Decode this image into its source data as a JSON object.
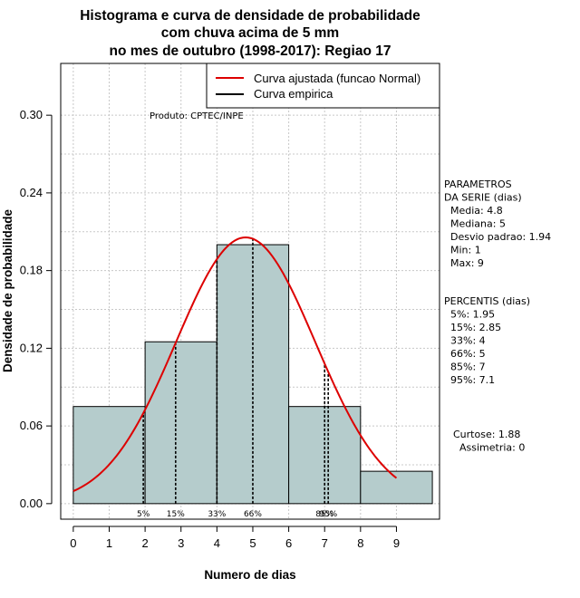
{
  "chart_data": {
    "type": "bar",
    "title_lines": [
      "Histograma e curva de densidade de probabilidade",
      "com chuva acima de 5 mm",
      "no mes de outubro (1998-2017): Regiao 17"
    ],
    "xlabel": "Numero de dias",
    "ylabel": "Densidade de probabilidade",
    "xlim": [
      -0.35,
      10.2
    ],
    "ylim": [
      -0.012,
      0.34
    ],
    "x_ticks": [
      "0",
      "1",
      "2",
      "3",
      "4",
      "5",
      "6",
      "7",
      "8",
      "9"
    ],
    "y_ticks": [
      "0.00",
      "0.06",
      "0.12",
      "0.18",
      "0.24",
      "0.30"
    ],
    "bins": [
      {
        "from": 0,
        "to": 2,
        "density": 0.075
      },
      {
        "from": 2,
        "to": 4,
        "density": 0.125
      },
      {
        "from": 4,
        "to": 6,
        "density": 0.2
      },
      {
        "from": 6,
        "to": 8,
        "density": 0.075
      },
      {
        "from": 8,
        "to": 10,
        "density": 0.025
      }
    ],
    "bar_color": "#b5cccc",
    "curve_color": "#dd0000",
    "normal_fit": {
      "mean": 4.8,
      "sd": 1.94,
      "x_from": 0,
      "x_to": 9
    },
    "percentile_lines": [
      {
        "label": "5%",
        "x": 1.95,
        "style": "dashed"
      },
      {
        "label": "15%",
        "x": 2.85,
        "style": "dashed"
      },
      {
        "label": "33%",
        "x": 4,
        "style": "dashed"
      },
      {
        "label": "66%",
        "x": 5,
        "style": "dashed"
      },
      {
        "label": "85%",
        "x": 7,
        "style": "dashed"
      },
      {
        "label": "95%",
        "x": 7.1,
        "style": "dashed"
      }
    ],
    "legend": [
      {
        "label": "Curva ajustada (funcao Normal)",
        "color": "#dd0000"
      },
      {
        "label": "Curva empirica",
        "color": "#000000"
      }
    ],
    "product_note": "Produto: CPTEC/INPE"
  },
  "side_panel": {
    "params": [
      "PARAMETROS",
      "DA SERIE (dias)",
      "  Media: 4.8",
      "  Mediana: 5",
      "  Desvio padrao: 1.94",
      "  Min: 1",
      "  Max: 9"
    ],
    "percentis": [
      "PERCENTIS (dias)",
      "  5%: 1.95",
      "  15%: 2.85",
      "  33%: 4",
      "  66%: 5",
      "  85%: 7",
      "  95%: 7.1"
    ],
    "shape": [
      "Curtose: 1.88",
      "  Assimetria: 0"
    ]
  }
}
